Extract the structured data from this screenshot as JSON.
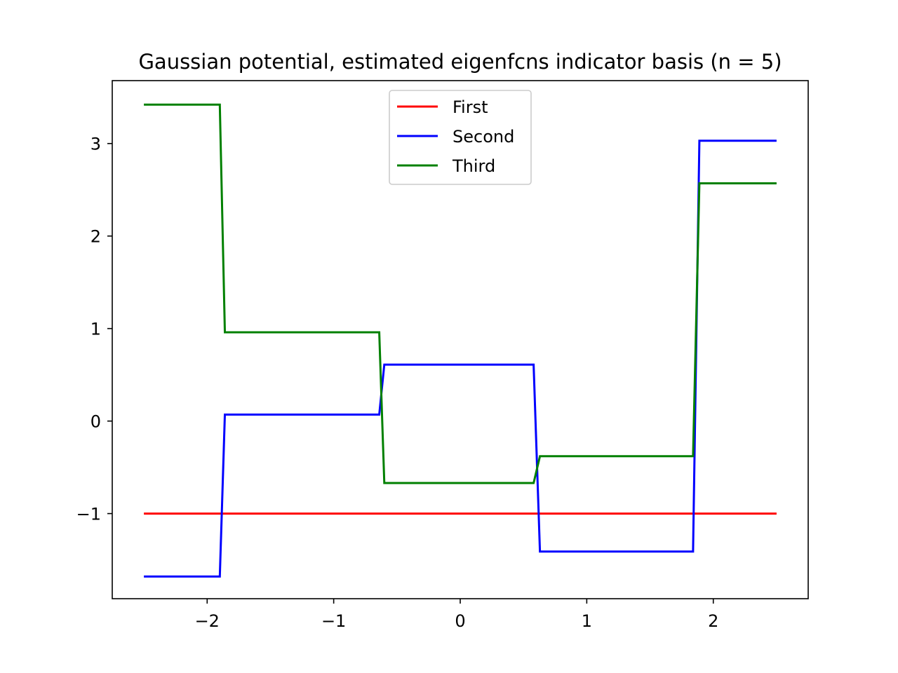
{
  "chart_data": {
    "type": "line",
    "title": "Gaussian potential, estimated eigenfcns indicator basis (n = 5)",
    "xlabel": "",
    "ylabel": "",
    "xlim": [
      -2.75,
      2.75
    ],
    "ylim": [
      -1.92,
      3.68
    ],
    "xticks": [
      -2,
      -1,
      0,
      1,
      2
    ],
    "yticks": [
      -1,
      0,
      1,
      2,
      3
    ],
    "xtick_labels": [
      "−2",
      "−1",
      "0",
      "1",
      "2"
    ],
    "ytick_labels": [
      "−1",
      "0",
      "1",
      "2",
      "3"
    ],
    "grid": false,
    "legend_position": "upper center",
    "series": [
      {
        "name": "First",
        "color": "#ff0000",
        "x": [
          -2.5,
          2.5
        ],
        "y": [
          -1.0,
          -1.0
        ]
      },
      {
        "name": "Second",
        "color": "#0000ff",
        "x": [
          -2.5,
          -1.9,
          -1.86,
          -0.64,
          -0.6,
          0.58,
          0.63,
          1.84,
          1.89,
          2.5
        ],
        "y": [
          -1.68,
          -1.68,
          0.07,
          0.07,
          0.61,
          0.61,
          -1.41,
          -1.41,
          3.03,
          3.03
        ]
      },
      {
        "name": "Third",
        "color": "#008000",
        "x": [
          -2.5,
          -1.9,
          -1.86,
          -0.64,
          -0.6,
          0.58,
          0.63,
          1.84,
          1.89,
          2.5
        ],
        "y": [
          3.42,
          3.42,
          0.96,
          0.96,
          -0.67,
          -0.67,
          -0.38,
          -0.38,
          2.57,
          2.57
        ]
      }
    ]
  }
}
